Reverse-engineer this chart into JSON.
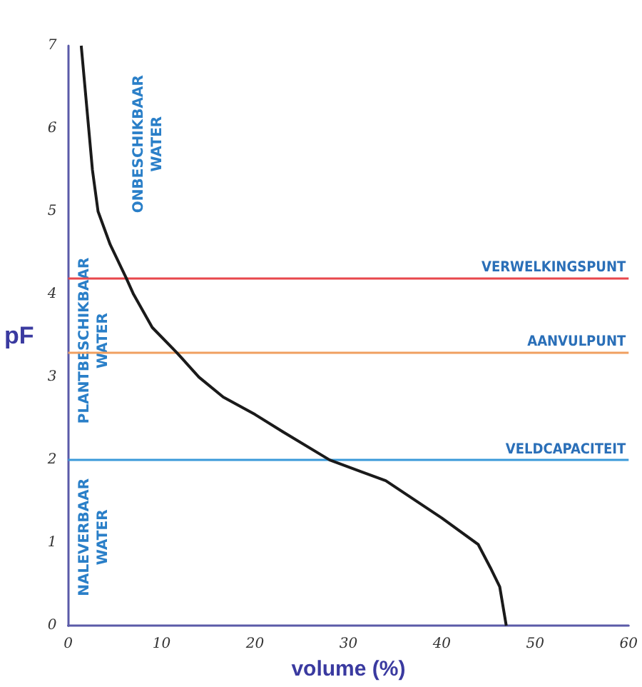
{
  "chart_data": {
    "type": "line",
    "xlabel": "volume (%)",
    "ylabel": "pF",
    "x": [
      1.4,
      1.8,
      2.2,
      2.6,
      3.2,
      4.5,
      6.2,
      7,
      9,
      11.6,
      14,
      16.6,
      20,
      23,
      28,
      34,
      40,
      43.9,
      45.2,
      46.2,
      46.9
    ],
    "series": [
      {
        "color": "#1a1a1a",
        "values": [
          7,
          6.5,
          6,
          5.5,
          5,
          4.6,
          4.2,
          4,
          3.6,
          3.3,
          3,
          2.76,
          2.55,
          2.34,
          2.0,
          1.75,
          1.3,
          0.98,
          0.7,
          0.47,
          0
        ]
      }
    ],
    "xlim": [
      0,
      60
    ],
    "xticks": [
      0,
      10,
      20,
      30,
      40,
      50,
      60
    ],
    "ylim": [
      0,
      7
    ],
    "yticks": [
      0,
      1,
      2,
      3,
      4,
      5,
      6,
      7
    ],
    "ref_lines": [
      {
        "axis": "y",
        "value": 4.2,
        "label": "VERWELKINGSPUNT",
        "color": "#e8474c"
      },
      {
        "axis": "y",
        "value": 3.3,
        "label": "AANVULPUNT",
        "color": "#f0a060"
      },
      {
        "axis": "y",
        "value": 2,
        "label": "VELDCAPACITEIT",
        "color": "#3a9ad9"
      }
    ],
    "annotations": [
      "ONBESCHIKBAAR\nWATER",
      "PLANTBESCHIKBAAR\nWATER",
      "NALEVERBAAR\nWATER"
    ],
    "grid": false,
    "marker": "none",
    "line_style": "solid"
  }
}
